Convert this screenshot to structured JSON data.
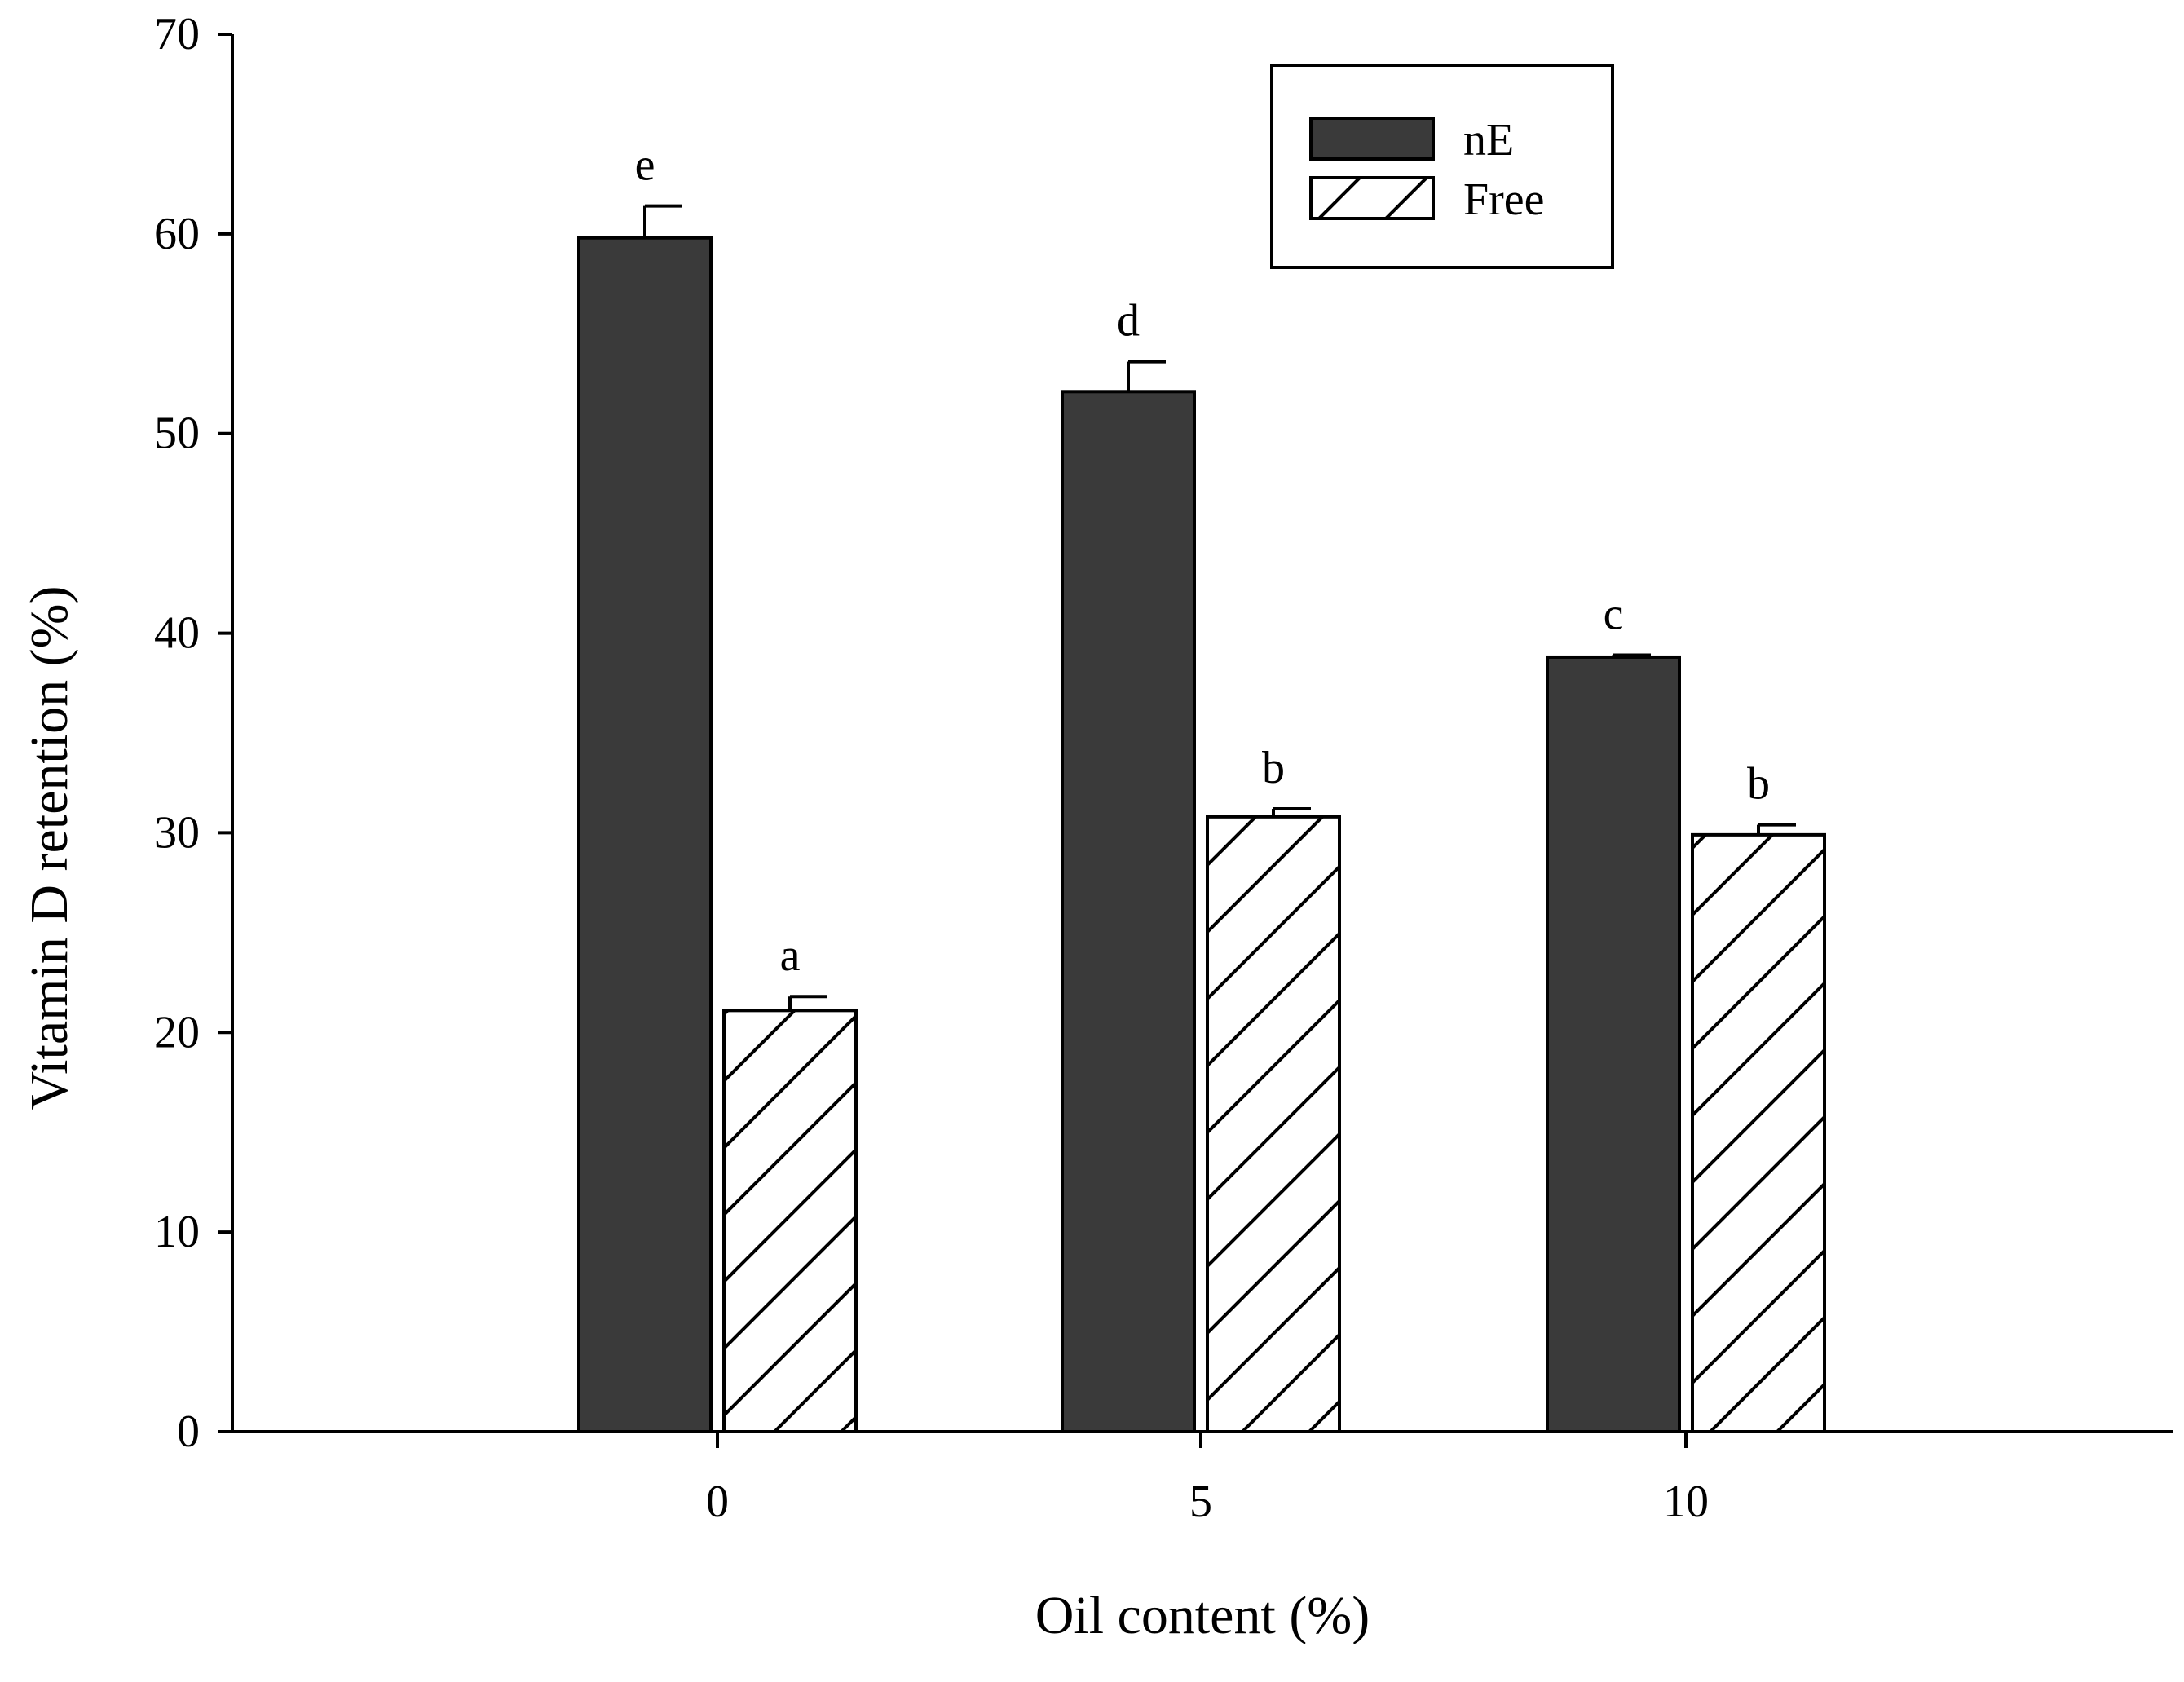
{
  "chart_data": {
    "type": "bar",
    "xlabel": "Oil content (%)",
    "ylabel": "Vitamin D retention (%)",
    "categories": [
      "0",
      "5",
      "10"
    ],
    "ylim": [
      0,
      70
    ],
    "yticks": [
      "0",
      "10",
      "20",
      "30",
      "40",
      "50",
      "60",
      "70"
    ],
    "grid": false,
    "legend_position": "top-right",
    "series": [
      {
        "name": "nE",
        "values": [
          59.8,
          52.1,
          38.8
        ],
        "errors": [
          1.6,
          1.5,
          0.1
        ],
        "labels": [
          "e",
          "d",
          "c"
        ],
        "fill": "#3a3a3a",
        "pattern": "solid"
      },
      {
        "name": "Free",
        "values": [
          21.1,
          30.8,
          29.9
        ],
        "errors": [
          0.7,
          0.4,
          0.5
        ],
        "labels": [
          "a",
          "b",
          "b"
        ],
        "fill": "#ffffff",
        "pattern": "diagonal-hatch"
      }
    ]
  }
}
